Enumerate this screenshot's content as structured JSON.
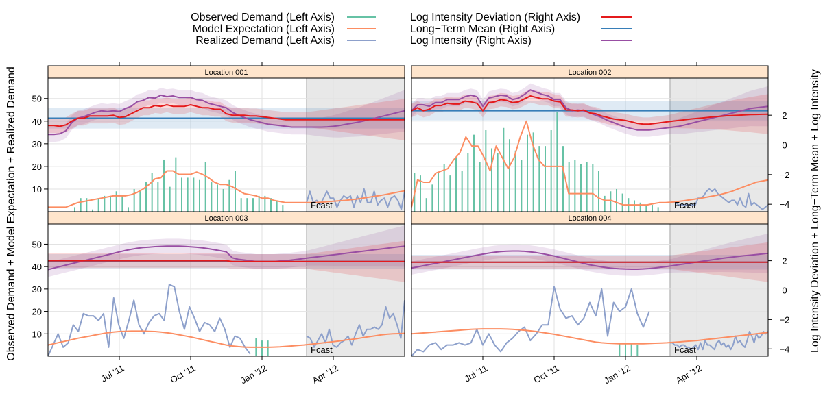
{
  "chart_data": {
    "type": "line",
    "title": "",
    "xlabel": "",
    "ylabel": "Observed Demand + Model Expectation + Realized Demand",
    "y2label": "Log Intensity Deviation + Long−Term Mean + Log Intensity",
    "forecast_label": "Fcast",
    "forecast_start": 43.5,
    "x_range": [
      0,
      60
    ],
    "ylim": [
      0,
      59
    ],
    "y2lim": [
      -4.5,
      4.5
    ],
    "x_ticks": [
      {
        "pos": 12,
        "label": "Jul '11"
      },
      {
        "pos": 24,
        "label": "Oct '11"
      },
      {
        "pos": 36,
        "label": "Jan '12"
      },
      {
        "pos": 48,
        "label": "Apr '12"
      }
    ],
    "y_ticks": [
      10,
      20,
      30,
      40,
      50
    ],
    "y2_ticks": [
      -4,
      -2,
      0,
      2
    ],
    "legend": {
      "left": [
        {
          "name": "Observed Demand (Left Axis)",
          "color": "#66c2a5"
        },
        {
          "name": "Model Expectation (Left Axis)",
          "color": "#fc8d62"
        },
        {
          "name": "Realized Demand (Left Axis)",
          "color": "#8da0cb"
        }
      ],
      "right": [
        {
          "name": "Log Intensity Deviation (Right Axis)",
          "color": "#e41a1c"
        },
        {
          "name": "Long−Term Mean (Right Axis)",
          "color": "#377eb8"
        },
        {
          "name": "Log Intensity (Right Axis)",
          "color": "#984ea3"
        }
      ]
    },
    "panels": [
      {
        "title": "Location 001",
        "observed": [
          0,
          0,
          0,
          0,
          2,
          6,
          6,
          1,
          6,
          7,
          7,
          9,
          7,
          2,
          10,
          9,
          13,
          17,
          13,
          23,
          11,
          24,
          15,
          15,
          15,
          14,
          22,
          13,
          12,
          10,
          14,
          18,
          6,
          6,
          6,
          7,
          7,
          6,
          5,
          3
        ],
        "expectation": [
          2,
          2,
          2,
          2,
          3,
          4,
          4.5,
          5,
          5.5,
          6,
          6.5,
          7,
          7,
          7,
          7.5,
          8.5,
          10,
          12,
          14.5,
          15,
          18,
          18,
          16.5,
          16.5,
          16.5,
          17.5,
          16.5,
          15,
          13,
          12,
          12,
          11,
          9.5,
          8,
          7.5,
          7,
          6,
          6,
          5,
          4.5,
          4,
          4,
          4,
          4,
          4,
          4,
          4.2,
          4.4,
          4.6,
          4.8,
          5,
          5.3,
          5.6,
          6,
          6.4,
          6.8,
          7.2,
          7.7,
          8.2,
          8.7,
          9.2
        ],
        "realized": [
          4,
          9,
          4,
          5,
          3,
          6,
          9,
          6,
          6,
          2,
          5,
          7,
          6,
          7,
          2,
          7,
          4,
          10,
          4,
          4,
          9,
          3,
          5,
          6,
          2,
          6,
          7,
          5,
          1,
          9
        ],
        "deviation": [
          1.3,
          1.3,
          1.25,
          1.35,
          1.6,
          1.8,
          1.8,
          1.95,
          1.95,
          1.95,
          1.95,
          2,
          1.85,
          1.9,
          2.1,
          2.3,
          2.5,
          2.5,
          2.65,
          2.6,
          2.7,
          2.6,
          2.6,
          2.6,
          2.7,
          2.6,
          2.5,
          2.5,
          2.4,
          2.4,
          2.1,
          2,
          2,
          2,
          1.95,
          1.95,
          1.9,
          1.85,
          1.8,
          1.75,
          1.7,
          1.7,
          1.7,
          1.7,
          1.7,
          1.7,
          1.7,
          1.7,
          1.7,
          1.7,
          1.7,
          1.7,
          1.7,
          1.7,
          1.7,
          1.7,
          1.7,
          1.7,
          1.7,
          1.7,
          1.7
        ],
        "mean": 1.8,
        "intensity": [
          0.7,
          0.7,
          0.75,
          0.95,
          1.5,
          1.8,
          1.9,
          2.05,
          2.2,
          2.3,
          2.25,
          2.3,
          2.25,
          2.45,
          2.6,
          2.9,
          3,
          3.2,
          3.15,
          3.35,
          3.25,
          3.3,
          3.2,
          3.2,
          3.2,
          3.05,
          3,
          2.8,
          2.7,
          2.6,
          2.5,
          2.2,
          2,
          1.85,
          1.7,
          1.6,
          1.5,
          1.4,
          1.35,
          1.3,
          1.25,
          1.2,
          1.2,
          1.2,
          1.2,
          1.2,
          1.2,
          1.22,
          1.25,
          1.3,
          1.38,
          1.45,
          1.52,
          1.6,
          1.7,
          1.8,
          1.9,
          2,
          2.1,
          2.2,
          2.3
        ],
        "band_half_width": 0.5,
        "mean_band_half_width": 0.7,
        "realized_dashed": true
      },
      {
        "title": "Location 002",
        "observed": [
          17,
          16,
          6,
          12,
          17,
          21,
          16,
          24,
          18,
          26,
          34,
          22,
          36,
          28,
          26,
          37,
          32,
          27,
          23,
          34,
          35,
          29,
          29,
          36,
          44,
          29,
          22,
          23,
          21,
          22,
          21,
          18,
          7,
          9,
          10,
          8,
          6,
          5,
          4,
          3,
          3,
          2
        ],
        "expectation": [
          2,
          14,
          13,
          13,
          17,
          18,
          19,
          23,
          26,
          33,
          29,
          29,
          24,
          18,
          29,
          24,
          19,
          24,
          33,
          40,
          30,
          23,
          20,
          20,
          20,
          20,
          8,
          8,
          8,
          8,
          8,
          6,
          5,
          5,
          4,
          3,
          3,
          3,
          3,
          3,
          3.5,
          4,
          4,
          4.2,
          4.5,
          4.8,
          5.2,
          5.6,
          6,
          6.5,
          7,
          7.5,
          8.2,
          9,
          10,
          11,
          12,
          13,
          13.5,
          14
        ],
        "realized": [
          4,
          4,
          4,
          3,
          3,
          3,
          3,
          3,
          3,
          3,
          6,
          6,
          7,
          9,
          10,
          9,
          10,
          8,
          7,
          6,
          5,
          4,
          5,
          5,
          3,
          6,
          3,
          2,
          8,
          3,
          4,
          3,
          2,
          1,
          2,
          3
        ],
        "deviation": [
          2.3,
          2.5,
          2.3,
          2.4,
          2.65,
          2.65,
          2.8,
          2.75,
          2.75,
          2.95,
          2.9,
          2.8,
          2.3,
          2.85,
          2.9,
          3.05,
          3,
          2.85,
          2.9,
          3.1,
          3.3,
          3.2,
          3.1,
          3.1,
          2.95,
          2.9,
          2.35,
          2.35,
          2.3,
          2.35,
          2.15,
          2.1,
          1.95,
          1.85,
          1.75,
          1.7,
          1.65,
          1.55,
          1.45,
          1.4,
          1.4,
          1.45,
          1.5,
          1.55,
          1.6,
          1.65,
          1.7,
          1.75,
          1.78,
          1.82,
          1.86,
          1.9,
          1.93,
          1.96,
          1.98,
          2,
          2.02,
          2.04,
          2.05,
          2.06,
          2.07
        ],
        "mean": 2.3,
        "intensity": [
          2.3,
          2.7,
          2.7,
          2.6,
          2.85,
          2.85,
          3.05,
          3.05,
          3.05,
          3.25,
          3.35,
          3.25,
          2.6,
          3.15,
          3.25,
          3.35,
          3.3,
          3.05,
          3.15,
          3.4,
          3.7,
          3.55,
          3.4,
          3.3,
          3.05,
          3.05,
          2.5,
          2.3,
          2.35,
          2.3,
          2.15,
          2,
          1.85,
          1.65,
          1.5,
          1.35,
          1.2,
          1.1,
          1,
          1,
          1,
          1.05,
          1.1,
          1.15,
          1.2,
          1.25,
          1.35,
          1.45,
          1.55,
          1.65,
          1.75,
          1.85,
          1.95,
          2.05,
          2.15,
          2.25,
          2.35,
          2.45,
          2.5,
          2.55,
          2.6
        ],
        "band_half_width": 0.45,
        "mean_band_half_width": 0.65,
        "realized_dashed": false
      },
      {
        "title": "Location 003",
        "observed": [
          8,
          7,
          7
        ],
        "expectation": [
          5,
          5.6,
          6.2,
          6.8,
          7.4,
          8,
          8.5,
          9,
          9.5,
          10,
          10.5,
          10.8,
          11,
          11.1,
          11.2,
          11.2,
          11.2,
          11.1,
          11,
          10.8,
          10.5,
          10.1,
          9.6,
          9.1,
          8.6,
          8,
          7.4,
          6.8,
          6.2,
          5.6,
          5,
          4.6,
          4.3,
          4.1,
          4,
          4,
          4,
          4,
          4.1,
          4.2,
          4.4,
          4.6,
          4.8,
          5,
          5.3,
          5.6,
          5.9,
          6.2,
          6.5,
          6.8,
          7.2,
          7.5,
          7.9,
          8.3,
          8.7,
          9.1,
          9.5,
          9.8,
          10,
          10.1,
          10.2
        ],
        "realized": [
          0,
          5,
          10,
          4,
          6,
          14,
          11,
          19,
          18,
          18,
          16,
          19,
          4,
          26,
          14,
          8,
          16,
          25,
          14,
          10,
          15,
          18,
          19,
          16,
          32,
          31,
          20,
          12,
          22,
          17,
          11,
          15,
          14,
          11,
          17,
          12,
          4,
          9,
          8,
          4,
          1
        ],
        "realized_tail": [
          9,
          8,
          4,
          7,
          10,
          6,
          12,
          5,
          4,
          6,
          7,
          9,
          5,
          10,
          14,
          9,
          12,
          12,
          13,
          12,
          14,
          22,
          17,
          19,
          14,
          8,
          25
        ],
        "deviation": [
          2,
          2,
          2,
          2,
          2,
          2,
          2,
          2,
          2,
          2,
          2,
          2,
          2,
          2,
          2,
          2,
          2,
          2,
          2,
          2,
          2,
          2,
          2,
          2,
          2,
          2,
          2,
          2,
          2,
          2,
          2,
          1.95,
          1.95,
          1.95,
          1.95,
          1.95,
          1.95,
          1.95,
          1.95,
          1.95,
          1.95,
          1.95,
          1.95,
          1.95,
          1.95,
          1.95,
          1.95,
          1.95,
          1.95,
          1.95,
          1.95,
          1.95,
          1.95,
          1.95,
          1.95,
          1.95,
          1.95,
          1.95,
          1.95,
          1.95,
          1.95
        ],
        "mean": 1.95,
        "intensity": [
          1.4,
          1.5,
          1.6,
          1.7,
          1.8,
          1.9,
          2,
          2.1,
          2.2,
          2.3,
          2.4,
          2.5,
          2.6,
          2.7,
          2.78,
          2.85,
          2.9,
          2.93,
          2.96,
          2.98,
          3,
          3,
          3,
          2.98,
          2.95,
          2.92,
          2.88,
          2.82,
          2.75,
          2.68,
          2.6,
          2.2,
          2.1,
          2.05,
          2,
          1.95,
          1.95,
          1.95,
          1.95,
          1.98,
          2,
          2.05,
          2.1,
          2.15,
          2.2,
          2.25,
          2.3,
          2.35,
          2.4,
          2.45,
          2.5,
          2.55,
          2.6,
          2.65,
          2.7,
          2.75,
          2.8,
          2.85,
          2.9,
          2.95,
          3
        ],
        "band_half_width": 0.5,
        "mean_band_half_width": 0.5,
        "realized_dashed": false
      },
      {
        "title": "Location 004",
        "observed": [
          6,
          6,
          6,
          5
        ],
        "expectation": [
          10,
          10.2,
          10.4,
          10.6,
          10.8,
          11,
          11.2,
          11.4,
          11.6,
          11.8,
          12,
          12.1,
          12.2,
          12.2,
          12.2,
          12.2,
          12.1,
          12,
          11.8,
          11.6,
          11.3,
          11,
          10.6,
          10.2,
          9.8,
          9.3,
          8.8,
          8.3,
          7.8,
          7.3,
          6.8,
          6.3,
          6,
          5.8,
          5.7,
          5.6,
          5.6,
          5.6,
          5.6,
          5.6,
          5.7,
          5.8,
          5.9,
          6,
          6.2,
          6.4,
          6.6,
          6.8,
          7,
          7.3,
          7.6,
          7.9,
          8.2,
          8.5,
          8.8,
          9.1,
          9.4,
          9.7,
          10,
          10.3,
          10.6
        ],
        "realized": [
          0,
          3,
          2,
          5,
          6,
          3,
          5,
          5,
          6,
          5,
          6,
          12,
          5,
          10,
          5,
          2,
          6,
          8,
          11,
          13,
          7,
          10,
          14,
          14,
          31,
          21,
          17,
          18,
          14,
          17,
          24,
          18,
          30,
          9,
          24,
          20,
          22,
          30,
          19,
          13,
          20
        ],
        "realized_tail": [
          6,
          6,
          5,
          5,
          4,
          5,
          5,
          4,
          4,
          3,
          4,
          5,
          3,
          6,
          3,
          7,
          5,
          5,
          4,
          3,
          6,
          7,
          5,
          6,
          4,
          5,
          3,
          5,
          9,
          6,
          7,
          5,
          4,
          7,
          11,
          9,
          6,
          10,
          8,
          9,
          11,
          10,
          11
        ],
        "deviation": [
          1.9,
          1.9,
          1.9,
          1.9,
          1.9,
          1.9,
          1.9,
          1.9,
          1.9,
          1.9,
          1.9,
          1.9,
          1.9,
          1.9,
          1.9,
          1.9,
          1.9,
          1.9,
          1.9,
          1.9,
          1.9,
          1.9,
          1.9,
          1.9,
          1.9,
          1.9,
          1.9,
          1.9,
          1.9,
          1.9,
          1.9,
          1.9,
          1.9,
          1.9,
          1.9,
          1.9,
          1.9,
          1.9,
          1.9,
          1.9,
          1.9,
          1.9,
          1.9,
          1.9,
          1.9,
          1.9,
          1.9,
          1.9,
          1.9,
          1.9,
          1.9,
          1.9,
          1.9,
          1.9,
          1.9,
          1.9,
          1.9,
          1.9,
          1.9,
          1.9,
          1.9
        ],
        "mean": 1.9,
        "intensity": [
          1.5,
          1.58,
          1.66,
          1.74,
          1.82,
          1.9,
          1.98,
          2.06,
          2.14,
          2.22,
          2.3,
          2.38,
          2.45,
          2.52,
          2.58,
          2.62,
          2.65,
          2.66,
          2.66,
          2.64,
          2.6,
          2.55,
          2.48,
          2.4,
          2.32,
          2.22,
          2.12,
          2.02,
          1.92,
          1.82,
          1.72,
          1.65,
          1.58,
          1.52,
          1.48,
          1.45,
          1.43,
          1.42,
          1.42,
          1.44,
          1.47,
          1.51,
          1.56,
          1.61,
          1.67,
          1.73,
          1.79,
          1.85,
          1.91,
          1.97,
          2.03,
          2.09,
          2.15,
          2.2,
          2.25,
          2.3,
          2.34,
          2.38,
          2.42,
          2.46,
          2.5
        ],
        "band_half_width": 0.45,
        "mean_band_half_width": 0.5,
        "realized_dashed": false
      }
    ]
  }
}
